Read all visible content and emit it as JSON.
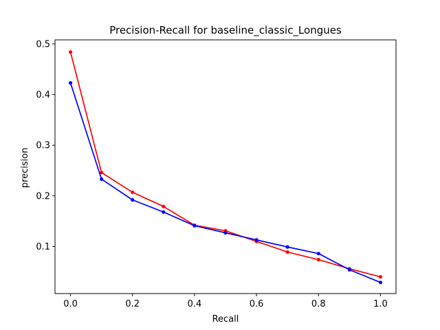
{
  "chart_data": {
    "type": "line",
    "title": "Precision-Recall for baseline_classic_Longues",
    "xlabel": "Recall",
    "ylabel": "precision",
    "xlim": [
      -0.05,
      1.05
    ],
    "ylim": [
      0.007,
      0.508
    ],
    "xticks": [
      "0.0",
      "0.2",
      "0.4",
      "0.6",
      "0.8",
      "1.0"
    ],
    "yticks": [
      "0.1",
      "0.2",
      "0.3",
      "0.4",
      "0.5"
    ],
    "grid": false,
    "legend": "none",
    "x": [
      0.0,
      0.1,
      0.2,
      0.3,
      0.4,
      0.5,
      0.6,
      0.7,
      0.8,
      0.9,
      1.0
    ],
    "series": [
      {
        "color": "#ff0000",
        "marker": "dot",
        "values": [
          0.484,
          0.246,
          0.207,
          0.179,
          0.142,
          0.131,
          0.11,
          0.089,
          0.074,
          0.056,
          0.04
        ]
      },
      {
        "color": "#0000ff",
        "marker": "dot",
        "values": [
          0.423,
          0.233,
          0.192,
          0.168,
          0.141,
          0.127,
          0.113,
          0.099,
          0.086,
          0.054,
          0.029
        ]
      }
    ]
  }
}
